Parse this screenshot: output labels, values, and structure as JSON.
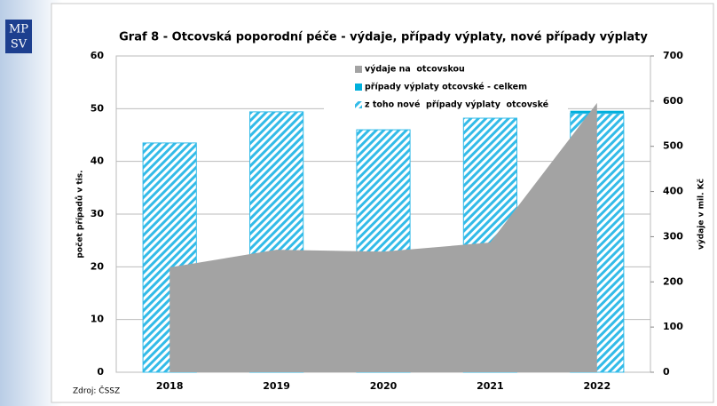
{
  "logo_lines": [
    "MP",
    "SV"
  ],
  "source": "Zdroj: ČSSZ",
  "chart_data": {
    "type": "bar",
    "title": "Graf 8 - Otcovská poporodní péče - výdaje, případy výplaty, nové případy výplaty",
    "y_label": "počet případů v tis.",
    "y2_label": "výdaje v mil. Kč",
    "categories": [
      "2018",
      "2019",
      "2020",
      "2021",
      "2022"
    ],
    "series": [
      {
        "name": "výdaje na  otcovskou",
        "type": "area",
        "axis": "y2",
        "color": "#a3a3a3",
        "values": [
          232,
          271,
          267,
          287,
          596
        ]
      },
      {
        "name": "případy výplaty otcovské - celkem",
        "type": "bar",
        "color": "#00b0dc",
        "values": [
          43.5,
          49.4,
          46.0,
          48.2,
          49.6
        ]
      },
      {
        "name": "z toho nové  případy výplaty  otcovské",
        "type": "hatched-bar",
        "color": "#33bbe8",
        "values": [
          43.5,
          49.4,
          46.0,
          48.2,
          49.1
        ]
      }
    ],
    "ylim": [
      0,
      60
    ],
    "yticks": [
      0,
      10,
      20,
      30,
      40,
      50,
      60
    ],
    "y2lim": [
      0,
      700
    ],
    "y2ticks": [
      0,
      100,
      200,
      300,
      400,
      500,
      600,
      700
    ],
    "grid": true
  }
}
